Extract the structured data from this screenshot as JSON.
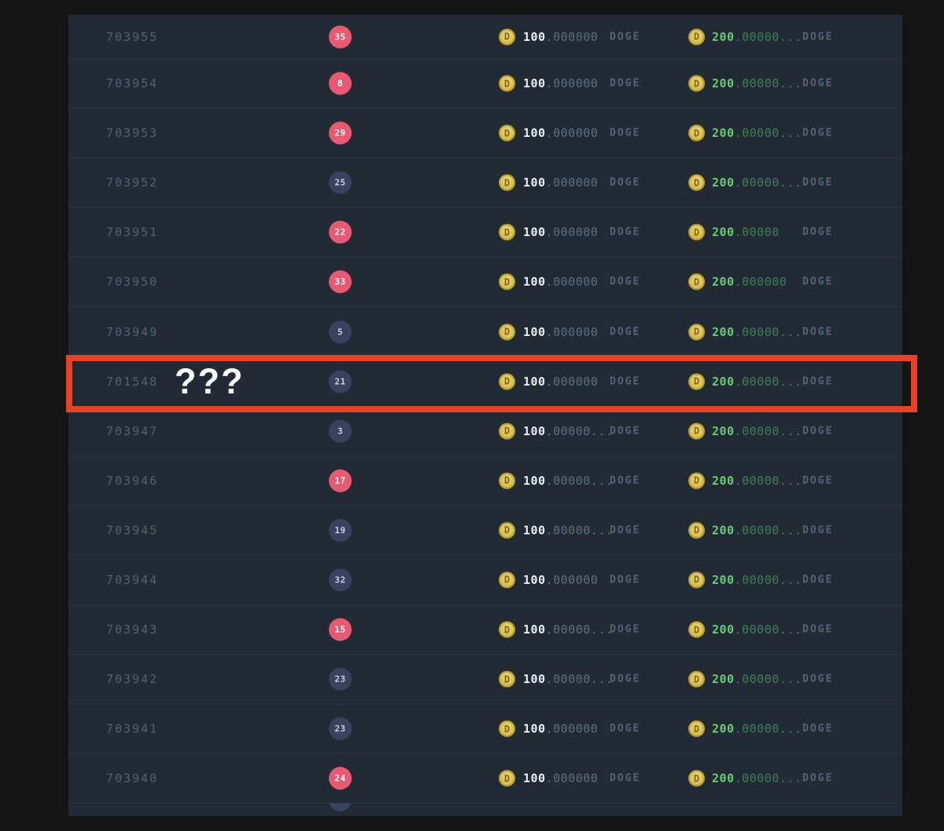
{
  "page": {
    "background": "#141414"
  },
  "colors": {
    "table_bg": "#222b35",
    "divider": "#2b3641",
    "id_text": "#4f6174",
    "badge_red": "#e85a73",
    "badge_navy": "#3b415f",
    "coin_gold": "#d9c14e",
    "amount_int": "#e8eef4",
    "amount_frac": "#5c6e80",
    "win_int": "#68ca74",
    "win_frac": "#3f7e55",
    "currency_text": "#54627a",
    "highlight_box": "#e84125"
  },
  "table": {
    "currency": "DOGE",
    "coin_icon_letter": "D"
  },
  "highlight": {
    "label": "???"
  },
  "rows": [
    {
      "id": "703955",
      "badge": {
        "value": "35",
        "color": "red"
      },
      "bet": {
        "int": "100",
        "frac": ".000000"
      },
      "win": {
        "int": "200",
        "frac": ".00000..."
      },
      "highlighted": false
    },
    {
      "id": "703954",
      "badge": {
        "value": "8",
        "color": "red"
      },
      "bet": {
        "int": "100",
        "frac": ".000000"
      },
      "win": {
        "int": "200",
        "frac": ".00000..."
      },
      "highlighted": false
    },
    {
      "id": "703953",
      "badge": {
        "value": "29",
        "color": "red"
      },
      "bet": {
        "int": "100",
        "frac": ".000000"
      },
      "win": {
        "int": "200",
        "frac": ".00000..."
      },
      "highlighted": false
    },
    {
      "id": "703952",
      "badge": {
        "value": "25",
        "color": "navy"
      },
      "bet": {
        "int": "100",
        "frac": ".000000"
      },
      "win": {
        "int": "200",
        "frac": ".00000..."
      },
      "highlighted": false
    },
    {
      "id": "703951",
      "badge": {
        "value": "22",
        "color": "red"
      },
      "bet": {
        "int": "100",
        "frac": ".000000"
      },
      "win": {
        "int": "200",
        "frac": ".00000"
      },
      "highlighted": false
    },
    {
      "id": "703950",
      "badge": {
        "value": "33",
        "color": "red"
      },
      "bet": {
        "int": "100",
        "frac": ".000000"
      },
      "win": {
        "int": "200",
        "frac": ".000000"
      },
      "highlighted": false
    },
    {
      "id": "703949",
      "badge": {
        "value": "5",
        "color": "navy"
      },
      "bet": {
        "int": "100",
        "frac": ".000000"
      },
      "win": {
        "int": "200",
        "frac": ".00000..."
      },
      "highlighted": false
    },
    {
      "id": "701548",
      "badge": {
        "value": "21",
        "color": "navy"
      },
      "bet": {
        "int": "100",
        "frac": ".000000"
      },
      "win": {
        "int": "200",
        "frac": ".00000..."
      },
      "highlighted": true
    },
    {
      "id": "703947",
      "badge": {
        "value": "3",
        "color": "navy"
      },
      "bet": {
        "int": "100",
        "frac": ".00000..."
      },
      "win": {
        "int": "200",
        "frac": ".00000..."
      },
      "highlighted": false
    },
    {
      "id": "703946",
      "badge": {
        "value": "17",
        "color": "red"
      },
      "bet": {
        "int": "100",
        "frac": ".00000..."
      },
      "win": {
        "int": "200",
        "frac": ".00000..."
      },
      "highlighted": false
    },
    {
      "id": "703945",
      "badge": {
        "value": "19",
        "color": "navy"
      },
      "bet": {
        "int": "100",
        "frac": ".00000..."
      },
      "win": {
        "int": "200",
        "frac": ".00000..."
      },
      "highlighted": false
    },
    {
      "id": "703944",
      "badge": {
        "value": "32",
        "color": "navy"
      },
      "bet": {
        "int": "100",
        "frac": ".000000"
      },
      "win": {
        "int": "200",
        "frac": ".00000..."
      },
      "highlighted": false
    },
    {
      "id": "703943",
      "badge": {
        "value": "15",
        "color": "red"
      },
      "bet": {
        "int": "100",
        "frac": ".00000..."
      },
      "win": {
        "int": "200",
        "frac": ".00000..."
      },
      "highlighted": false
    },
    {
      "id": "703942",
      "badge": {
        "value": "23",
        "color": "navy"
      },
      "bet": {
        "int": "100",
        "frac": ".00000..."
      },
      "win": {
        "int": "200",
        "frac": ".00000..."
      },
      "highlighted": false
    },
    {
      "id": "703941",
      "badge": {
        "value": "23",
        "color": "navy"
      },
      "bet": {
        "int": "100",
        "frac": ".000000"
      },
      "win": {
        "int": "200",
        "frac": ".00000..."
      },
      "highlighted": false
    },
    {
      "id": "703940",
      "badge": {
        "value": "24",
        "color": "red"
      },
      "bet": {
        "int": "100",
        "frac": ".000000"
      },
      "win": {
        "int": "200",
        "frac": ".00000..."
      },
      "highlighted": false
    }
  ],
  "partial_row": {
    "badge_color": "navy"
  }
}
